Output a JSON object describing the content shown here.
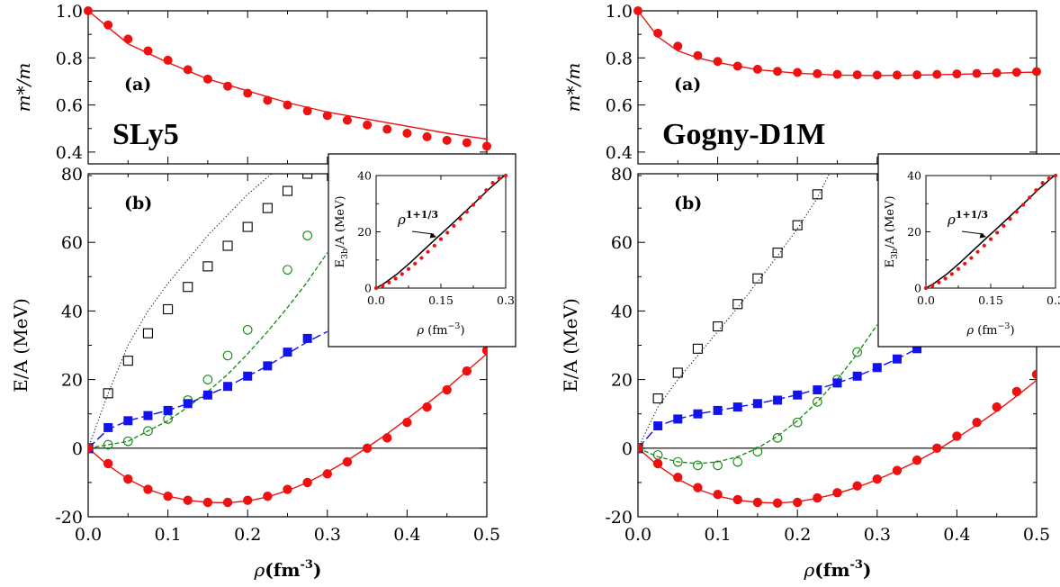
{
  "chart_data": [
    {
      "type": "scatter",
      "name_label": "SLy5",
      "top": {
        "panel_label": "(a)",
        "ylabel": "m*/m",
        "ylim": [
          0.35,
          1.0
        ],
        "yticks": [
          "0.4",
          "0.6",
          "0.8",
          "1.0"
        ],
        "curve": {
          "x": [
            0,
            0.05,
            0.1,
            0.15,
            0.2,
            0.25,
            0.3,
            0.35,
            0.4,
            0.45,
            0.5
          ],
          "y": [
            1.0,
            0.86,
            0.78,
            0.71,
            0.66,
            0.61,
            0.57,
            0.54,
            0.51,
            0.48,
            0.455
          ]
        },
        "points": {
          "x": [
            0,
            0.025,
            0.05,
            0.075,
            0.1,
            0.125,
            0.15,
            0.175,
            0.2,
            0.225,
            0.25,
            0.275,
            0.3,
            0.325,
            0.35,
            0.375,
            0.4,
            0.425,
            0.45,
            0.475,
            0.5
          ],
          "y": [
            1.0,
            0.94,
            0.88,
            0.83,
            0.79,
            0.75,
            0.71,
            0.68,
            0.65,
            0.62,
            0.6,
            0.575,
            0.555,
            0.535,
            0.515,
            0.497,
            0.48,
            0.465,
            0.45,
            0.44,
            0.425
          ]
        }
      },
      "bottom": {
        "panel_label": "(b)",
        "ylabel": "E/A (MeV)",
        "xlabel": "ρ(fm",
        "xlabel_exp": "-3",
        "xlabel_close": ")",
        "xlim": [
          0,
          0.5
        ],
        "ylim": [
          -20,
          80
        ],
        "xticks": [
          "0.0",
          "0.1",
          "0.2",
          "0.3",
          "0.4",
          "0.5"
        ],
        "yticks": [
          "-20",
          "0",
          "20",
          "40",
          "60",
          "80"
        ],
        "open_squares": {
          "x": [
            0,
            0.025,
            0.05,
            0.075,
            0.1,
            0.125,
            0.15,
            0.175,
            0.2,
            0.225,
            0.25,
            0.275
          ],
          "y": [
            0,
            16,
            25.5,
            33.5,
            40.5,
            47,
            53,
            59,
            64.5,
            70,
            75,
            80
          ]
        },
        "dotted_curve": {
          "x": [
            0,
            0.025,
            0.05,
            0.075,
            0.1,
            0.125,
            0.15,
            0.175,
            0.2,
            0.225,
            0.25
          ],
          "y": [
            0,
            16,
            30,
            40,
            48,
            55,
            62,
            68,
            74,
            79,
            84
          ]
        },
        "open_circles": {
          "x": [
            0,
            0.025,
            0.05,
            0.075,
            0.1,
            0.125,
            0.15,
            0.175,
            0.2,
            0.25,
            0.275
          ],
          "y": [
            0,
            1,
            2,
            5,
            8.5,
            14,
            20,
            27,
            34.5,
            52,
            62
          ]
        },
        "dashed_green": {
          "x": [
            0,
            0.05,
            0.1,
            0.125,
            0.15,
            0.175,
            0.2,
            0.225,
            0.25,
            0.275,
            0.3
          ],
          "y": [
            0,
            2,
            8,
            12,
            16.5,
            21.5,
            27.5,
            34,
            41,
            48.5,
            57
          ]
        },
        "filled_squares": {
          "x": [
            0,
            0.025,
            0.05,
            0.075,
            0.1,
            0.125,
            0.15,
            0.175,
            0.2,
            0.225,
            0.25,
            0.275
          ],
          "y": [
            0,
            6,
            8,
            9.5,
            11,
            13,
            15.5,
            18,
            21,
            24,
            28,
            32
          ]
        },
        "dashed_blue": {
          "x": [
            0,
            0.025,
            0.05,
            0.075,
            0.1,
            0.125,
            0.15,
            0.175,
            0.2,
            0.225,
            0.25,
            0.275,
            0.3
          ],
          "y": [
            0,
            5.5,
            8,
            9.5,
            11,
            13,
            15.5,
            18,
            21,
            24,
            27.5,
            31,
            34
          ]
        },
        "filled_circles": {
          "x": [
            0,
            0.025,
            0.05,
            0.075,
            0.1,
            0.125,
            0.15,
            0.175,
            0.2,
            0.225,
            0.25,
            0.275,
            0.3,
            0.325,
            0.35,
            0.375,
            0.4,
            0.425,
            0.45,
            0.475,
            0.5
          ],
          "y": [
            0,
            -4.5,
            -9,
            -12,
            -14,
            -15.2,
            -15.8,
            -15.8,
            -15.2,
            -14,
            -12,
            -10,
            -7.5,
            -4,
            0,
            3,
            7.5,
            12,
            17,
            22.5,
            28.5
          ]
        },
        "solid_red": {
          "x": [
            0,
            0.025,
            0.05,
            0.075,
            0.1,
            0.125,
            0.15,
            0.175,
            0.2,
            0.225,
            0.25,
            0.275,
            0.3,
            0.325,
            0.35,
            0.375,
            0.4,
            0.425,
            0.45,
            0.475,
            0.5
          ],
          "y": [
            0,
            -5,
            -9,
            -12,
            -14,
            -15.2,
            -15.8,
            -15.9,
            -15.4,
            -14.2,
            -12.4,
            -10,
            -7,
            -3.6,
            0.2,
            4.2,
            8.5,
            13,
            17.5,
            22.5,
            27.5
          ]
        }
      },
      "inset": {
        "ylabel": "E",
        "ylabel_sub": "3b",
        "ylabel_rest": "/A (MeV)",
        "xlabel": "ρ (fm",
        "xlabel_exp": "−3",
        "xlabel_close": ")",
        "annotation": "ρ",
        "annotation_exp": "1+1/3",
        "xlim": [
          0,
          0.3
        ],
        "ylim": [
          0,
          40
        ],
        "xticks": [
          "0.0",
          "0.15",
          "0.3"
        ],
        "yticks": [
          "0",
          "20",
          "40"
        ],
        "black_curve": {
          "x": [
            0,
            0.02,
            0.05,
            0.08,
            0.11,
            0.14,
            0.17,
            0.2,
            0.23,
            0.26,
            0.3
          ],
          "y": [
            0,
            1.8,
            5.2,
            9.2,
            13.5,
            17.8,
            22,
            26.3,
            30.6,
            35,
            40.4
          ]
        },
        "red_points": {
          "x": [
            0,
            0.015,
            0.03,
            0.045,
            0.06,
            0.075,
            0.09,
            0.105,
            0.12,
            0.135,
            0.15,
            0.165,
            0.18,
            0.195,
            0.21,
            0.225,
            0.24,
            0.255,
            0.27,
            0.285,
            0.3
          ],
          "y": [
            0,
            0.8,
            2,
            3.4,
            5,
            6.8,
            8.7,
            10.7,
            12.9,
            15.1,
            17.4,
            19.7,
            22.1,
            24.6,
            27.1,
            29.6,
            32.2,
            34.8,
            37.4,
            39,
            40
          ]
        }
      }
    },
    {
      "type": "scatter",
      "name_label": "Gogny-D1M",
      "top": {
        "panel_label": "(a)",
        "ylabel": "m*/m",
        "ylim": [
          0.35,
          1.0
        ],
        "yticks": [
          "0.4",
          "0.6",
          "0.8",
          "1.0"
        ],
        "curve": {
          "x": [
            0,
            0.025,
            0.05,
            0.075,
            0.1,
            0.15,
            0.2,
            0.25,
            0.3,
            0.35,
            0.4,
            0.45,
            0.5
          ],
          "y": [
            1.0,
            0.89,
            0.83,
            0.8,
            0.78,
            0.75,
            0.735,
            0.727,
            0.725,
            0.727,
            0.73,
            0.735,
            0.74
          ]
        },
        "points": {
          "x": [
            0,
            0.025,
            0.05,
            0.075,
            0.1,
            0.125,
            0.15,
            0.175,
            0.2,
            0.225,
            0.25,
            0.275,
            0.3,
            0.325,
            0.35,
            0.375,
            0.4,
            0.425,
            0.45,
            0.475,
            0.5
          ],
          "y": [
            1.0,
            0.905,
            0.85,
            0.81,
            0.785,
            0.765,
            0.752,
            0.743,
            0.738,
            0.733,
            0.73,
            0.728,
            0.727,
            0.727,
            0.728,
            0.73,
            0.732,
            0.734,
            0.736,
            0.739,
            0.742
          ]
        }
      },
      "bottom": {
        "panel_label": "(b)",
        "ylabel": "E/A (MeV)",
        "xlabel": "ρ(fm",
        "xlabel_exp": "-3",
        "xlabel_close": ")",
        "xlim": [
          0,
          0.5
        ],
        "ylim": [
          -20,
          80
        ],
        "xticks": [
          "0.0",
          "0.1",
          "0.2",
          "0.3",
          "0.4",
          "0.5"
        ],
        "yticks": [
          "-20",
          "0",
          "20",
          "40",
          "60",
          "80"
        ],
        "open_squares": {
          "x": [
            0,
            0.025,
            0.05,
            0.075,
            0.1,
            0.125,
            0.15,
            0.175,
            0.2,
            0.225
          ],
          "y": [
            0,
            14.5,
            22,
            29,
            35.5,
            42,
            49.5,
            57,
            65,
            74
          ]
        },
        "dotted_curve": {
          "x": [
            0,
            0.025,
            0.05,
            0.075,
            0.1,
            0.125,
            0.15,
            0.175,
            0.2,
            0.225,
            0.24
          ],
          "y": [
            0,
            12,
            20,
            27,
            34,
            41,
            48.5,
            56,
            64,
            73,
            80
          ]
        },
        "open_circles": {
          "x": [
            0,
            0.025,
            0.05,
            0.075,
            0.1,
            0.125,
            0.15,
            0.175,
            0.2,
            0.225,
            0.25,
            0.275
          ],
          "y": [
            0,
            -2,
            -4,
            -5,
            -5,
            -4,
            -1,
            3,
            7.5,
            13.5,
            20,
            28
          ]
        },
        "dashed_green": {
          "x": [
            0,
            0.025,
            0.05,
            0.075,
            0.1,
            0.125,
            0.15,
            0.175,
            0.2,
            0.225,
            0.25,
            0.275,
            0.3
          ],
          "y": [
            0,
            -2.5,
            -4,
            -4.5,
            -4,
            -2.5,
            0,
            3.5,
            8,
            13.5,
            20,
            27.5,
            36
          ]
        },
        "filled_squares": {
          "x": [
            0,
            0.025,
            0.05,
            0.075,
            0.1,
            0.125,
            0.15,
            0.175,
            0.2,
            0.225,
            0.25,
            0.275,
            0.3,
            0.325,
            0.35
          ],
          "y": [
            0,
            6.5,
            8.5,
            10,
            11,
            12,
            13,
            14,
            15.5,
            17,
            19,
            21,
            23.5,
            26,
            29
          ]
        },
        "dashed_blue": {
          "x": [
            0,
            0.025,
            0.05,
            0.075,
            0.1,
            0.125,
            0.15,
            0.175,
            0.2,
            0.225,
            0.25,
            0.275,
            0.3,
            0.325,
            0.35
          ],
          "y": [
            0,
            6.5,
            8.5,
            10,
            11,
            12,
            13,
            14.2,
            15.6,
            17.2,
            19,
            21,
            23.4,
            26,
            29
          ]
        },
        "filled_circles": {
          "x": [
            0,
            0.025,
            0.05,
            0.075,
            0.1,
            0.125,
            0.15,
            0.175,
            0.2,
            0.225,
            0.25,
            0.275,
            0.3,
            0.325,
            0.35,
            0.375,
            0.4,
            0.425,
            0.45,
            0.475,
            0.5
          ],
          "y": [
            0,
            -4.5,
            -8.5,
            -11.5,
            -13.5,
            -15,
            -15.8,
            -16,
            -15.8,
            -14.5,
            -13,
            -11,
            -9,
            -6.5,
            -3.5,
            0,
            3.5,
            7.5,
            12,
            16.5,
            21.5
          ]
        },
        "solid_red": {
          "x": [
            0,
            0.025,
            0.05,
            0.075,
            0.1,
            0.125,
            0.15,
            0.175,
            0.2,
            0.225,
            0.25,
            0.275,
            0.3,
            0.325,
            0.35,
            0.375,
            0.4,
            0.425,
            0.45,
            0.475,
            0.5
          ],
          "y": [
            0,
            -5,
            -9,
            -12,
            -14,
            -15.2,
            -15.8,
            -16,
            -15.6,
            -14.6,
            -13.2,
            -11.4,
            -9.2,
            -6.6,
            -3.8,
            -0.6,
            3,
            6.8,
            10.8,
            15.2,
            19.8
          ]
        }
      },
      "inset": {
        "ylabel": "E",
        "ylabel_sub": "3b",
        "ylabel_rest": "/A (MeV)",
        "xlabel": "ρ (fm",
        "xlabel_exp": "−3",
        "xlabel_close": ")",
        "annotation": "ρ",
        "annotation_exp": "1+1/3",
        "xlim": [
          0,
          0.3
        ],
        "ylim": [
          0,
          40
        ],
        "xticks": [
          "0.0",
          "0.15",
          "0.3"
        ],
        "yticks": [
          "0",
          "20",
          "40"
        ],
        "black_curve": {
          "x": [
            0,
            0.02,
            0.05,
            0.08,
            0.11,
            0.14,
            0.17,
            0.2,
            0.23,
            0.26,
            0.3
          ],
          "y": [
            0,
            1.8,
            5.2,
            9.2,
            13.5,
            17.8,
            22,
            26.3,
            30.6,
            35,
            40.4
          ]
        },
        "red_points": {
          "x": [
            0,
            0.015,
            0.03,
            0.045,
            0.06,
            0.075,
            0.09,
            0.105,
            0.12,
            0.135,
            0.15,
            0.165,
            0.18,
            0.195,
            0.21,
            0.225,
            0.24,
            0.255,
            0.27,
            0.285,
            0.3
          ],
          "y": [
            0,
            0.8,
            2,
            3.4,
            5,
            6.8,
            8.7,
            10.7,
            12.9,
            15.1,
            17.4,
            19.7,
            22.1,
            24.6,
            27.1,
            29.6,
            32.2,
            34.8,
            37.4,
            39,
            40
          ]
        }
      }
    }
  ]
}
